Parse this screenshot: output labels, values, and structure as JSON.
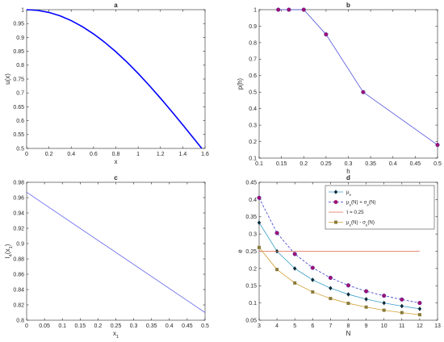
{
  "chart_data": [
    {
      "id": "a",
      "type": "line",
      "title": "a",
      "xlabel": "x",
      "ylabel": "u(x)",
      "xlim": [
        0,
        1.6
      ],
      "ylim": [
        0.5,
        1
      ],
      "xticks": [
        0,
        0.2,
        0.4,
        0.6,
        0.8,
        1,
        1.2,
        1.4,
        1.6
      ],
      "xtick_labels": [
        "0",
        "0.2",
        "0.4",
        "0.6",
        "0.8",
        "1",
        "1.2",
        "1.4",
        "1.6"
      ],
      "yticks": [
        0.5,
        0.55,
        0.6,
        0.65,
        0.7,
        0.75,
        0.8,
        0.85,
        0.9,
        0.95,
        1
      ],
      "ytick_labels": [
        "0.5",
        "0.55",
        "0.6",
        "0.65",
        "0.7",
        "0.75",
        "0.8",
        "0.85",
        "0.9",
        "0.95",
        "1"
      ],
      "grid": false,
      "series": [
        {
          "color": "#0000ff",
          "x": [
            0,
            0.1,
            0.2,
            0.3,
            0.4,
            0.5,
            0.6,
            0.7,
            0.8,
            0.9,
            1.0,
            1.1,
            1.2,
            1.3,
            1.4,
            1.5,
            1.5708
          ],
          "y": [
            1,
            0.9975,
            0.9901,
            0.9777,
            0.9606,
            0.9388,
            0.9127,
            0.8824,
            0.8484,
            0.8108,
            0.7702,
            0.7268,
            0.6812,
            0.6338,
            0.585,
            0.5354,
            0.5
          ]
        }
      ]
    },
    {
      "id": "b",
      "type": "line",
      "title": "b",
      "xlabel": "h",
      "ylabel": "p(h)",
      "xlim": [
        0.1,
        0.5
      ],
      "ylim": [
        0.1,
        1
      ],
      "xticks": [
        0.1,
        0.15,
        0.2,
        0.25,
        0.3,
        0.35,
        0.4,
        0.45,
        0.5
      ],
      "xtick_labels": [
        "0.1",
        "0.15",
        "0.2",
        "0.25",
        "0.3",
        "0.35",
        "0.4",
        "0.45",
        "0.5"
      ],
      "yticks": [
        0.1,
        0.2,
        0.3,
        0.4,
        0.5,
        0.6,
        0.7,
        0.8,
        0.9,
        1
      ],
      "ytick_labels": [
        "0.1",
        "0.2",
        "0.3",
        "0.4",
        "0.5",
        "0.6",
        "0.7",
        "0.8",
        "0.9",
        "1"
      ],
      "grid": false,
      "series": [
        {
          "color": "#5555dd",
          "marker_color": "#a0106e",
          "x": [
            0.1429,
            0.1667,
            0.2,
            0.25,
            0.3333,
            0.5
          ],
          "y": [
            1,
            1,
            1,
            0.85,
            0.5,
            0.18
          ]
        }
      ]
    },
    {
      "id": "c",
      "type": "line",
      "title": "c",
      "xlabel": "x",
      "xlabel_sub": "1",
      "ylabel": "I",
      "ylabel_sub": "4",
      "ylabel_suffix": "(x",
      "ylabel_suffix_sub": "1",
      "ylabel_end": ")",
      "xlim": [
        0,
        0.5
      ],
      "ylim": [
        0.8,
        0.98
      ],
      "xticks": [
        0,
        0.05,
        0.1,
        0.15,
        0.2,
        0.25,
        0.3,
        0.35,
        0.4,
        0.45,
        0.5
      ],
      "xtick_labels": [
        "0",
        "0.05",
        "0.1",
        "0.15",
        "0.2",
        "0.25",
        "0.3",
        "0.35",
        "0.4",
        "0.45",
        "0.5"
      ],
      "yticks": [
        0.8,
        0.82,
        0.84,
        0.86,
        0.88,
        0.9,
        0.92,
        0.94,
        0.96,
        0.98
      ],
      "ytick_labels": [
        "0.8",
        "0.82",
        "0.84",
        "0.86",
        "0.88",
        "0.9",
        "0.92",
        "0.94",
        "0.96",
        "0.98"
      ],
      "grid": false,
      "series": [
        {
          "color": "#6666ee",
          "x": [
            0,
            0.5
          ],
          "y": [
            0.967,
            0.81
          ]
        }
      ]
    },
    {
      "id": "d",
      "type": "line",
      "title": "d",
      "xlabel": "N",
      "ylabel": "e",
      "xlim": [
        3,
        13
      ],
      "ylim": [
        0.05,
        0.45
      ],
      "xticks": [
        3,
        4,
        5,
        6,
        7,
        8,
        9,
        10,
        11,
        12,
        13
      ],
      "xtick_labels": [
        "3",
        "4",
        "5",
        "6",
        "7",
        "8",
        "9",
        "10",
        "11",
        "12",
        "13"
      ],
      "yticks": [
        0.05,
        0.1,
        0.15,
        0.2,
        0.25,
        0.3,
        0.35,
        0.4,
        0.45
      ],
      "ytick_labels": [
        "0.05",
        "0.1",
        "0.15",
        "0.2",
        "0.25",
        "0.3",
        "0.35",
        "0.4",
        "0.45"
      ],
      "grid": false,
      "legend_position": "top-right",
      "series": [
        {
          "legend": {
            "base": "μ",
            "sub": "e",
            "rest": ""
          },
          "color": "#3aa0c8",
          "marker": "diamond",
          "marker_color": "#0a2a3a",
          "dash": false,
          "x": [
            3,
            4,
            5,
            6,
            7,
            8,
            9,
            10,
            11,
            12
          ],
          "y": [
            0.333,
            0.25,
            0.2,
            0.167,
            0.143,
            0.125,
            0.111,
            0.1,
            0.091,
            0.083
          ]
        },
        {
          "legend": {
            "base": "μ",
            "sub": "e",
            "rest": "(N) + σ",
            "sub2": "e",
            "end": "(N)"
          },
          "color": "#3a3acc",
          "marker": "circle",
          "marker_color": "#a0106e",
          "dash": true,
          "x": [
            3,
            4,
            5,
            6,
            7,
            8,
            9,
            10,
            11,
            12
          ],
          "y": [
            0.405,
            0.303,
            0.242,
            0.202,
            0.173,
            0.151,
            0.134,
            0.121,
            0.11,
            0.1
          ]
        },
        {
          "legend": {
            "base": "τ = 0.25",
            "sub": "",
            "rest": ""
          },
          "color": "#e06a50",
          "marker": "none",
          "dash": false,
          "x": [
            3,
            12
          ],
          "y": [
            0.25,
            0.25
          ]
        },
        {
          "legend": {
            "base": "μ",
            "sub": "e",
            "rest": "(N) - σ",
            "sub2": "e",
            "end": "(N)"
          },
          "color": "#d0a030",
          "marker": "square",
          "marker_color": "#8a7a3a",
          "dash": false,
          "x": [
            3,
            4,
            5,
            6,
            7,
            8,
            9,
            10,
            11,
            12
          ],
          "y": [
            0.261,
            0.197,
            0.158,
            0.132,
            0.113,
            0.099,
            0.088,
            0.079,
            0.072,
            0.066
          ]
        }
      ]
    }
  ]
}
